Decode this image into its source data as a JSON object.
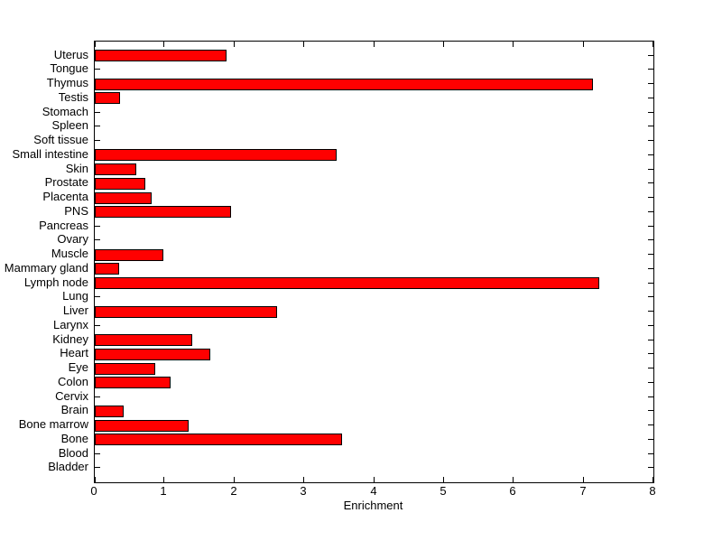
{
  "figure": {
    "background": "#ffffff",
    "text_color": "#000000"
  },
  "chart_data": {
    "type": "bar",
    "orientation": "horizontal",
    "order": "top-to-bottom",
    "title": "",
    "xlabel": "Enrichment",
    "ylabel": "",
    "xlim": [
      0,
      8
    ],
    "xticks": [
      0,
      1,
      2,
      3,
      4,
      5,
      6,
      7,
      8
    ],
    "grid": false,
    "legend_position": "none",
    "bar_color": "#ff0000",
    "bar_edge_color": "#000000",
    "axis_color": "#000000",
    "categories": [
      "Uterus",
      "Tongue",
      "Thymus",
      "Testis",
      "Stomach",
      "Spleen",
      "Soft tissue",
      "Small intestine",
      "Skin",
      "Prostate",
      "Placenta",
      "PNS",
      "Pancreas",
      "Ovary",
      "Muscle",
      "Mammary gland",
      "Lymph node",
      "Lung",
      "Liver",
      "Larynx",
      "Kidney",
      "Heart",
      "Eye",
      "Colon",
      "Cervix",
      "Brain",
      "Bone marrow",
      "Bone",
      "Blood",
      "Bladder"
    ],
    "values": [
      1.89,
      0,
      7.14,
      0.36,
      0,
      0,
      0,
      3.47,
      0.59,
      0.73,
      0.82,
      1.95,
      0,
      0,
      0.98,
      0.35,
      7.22,
      0,
      2.61,
      0,
      1.4,
      1.65,
      0.87,
      1.08,
      0,
      0.42,
      1.34,
      3.54,
      0,
      0
    ]
  }
}
